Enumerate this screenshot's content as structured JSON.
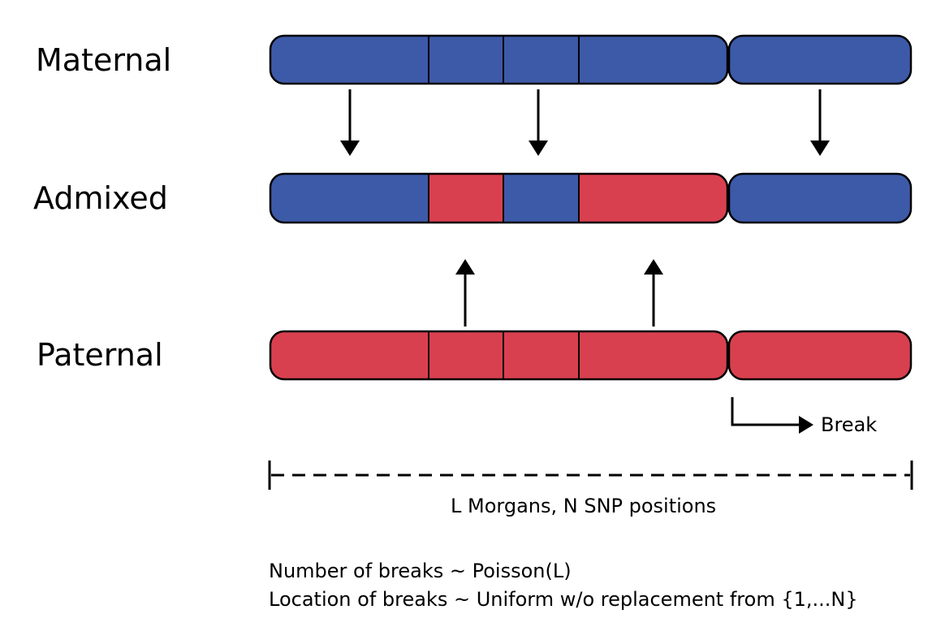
{
  "rows": {
    "maternal": "Maternal",
    "admixed": "Admixed",
    "paternal": "Paternal"
  },
  "colors": {
    "maternal_blue": "#3d5aa8",
    "paternal_red": "#d9404f",
    "outline": "#000000"
  },
  "break_label": "Break",
  "scale_label": "L Morgans, N SNP positions",
  "formulas": [
    "Number of breaks  ~ Poisson(L)",
    "Location of breaks ~ Uniform w/o replacement from {1,...N}"
  ]
}
